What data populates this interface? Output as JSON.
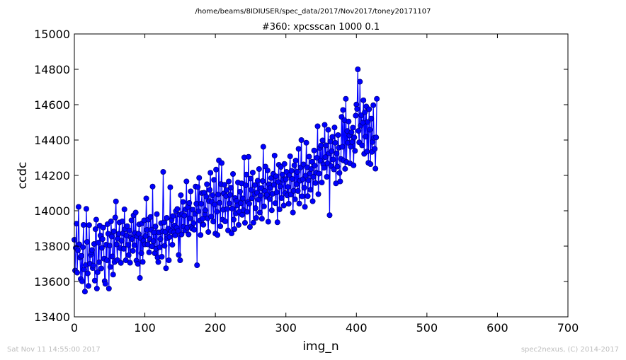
{
  "chart_data": {
    "type": "line",
    "suptitle": "/home/beams/8IDIUSER/spec_data/2017/Nov2017/toney20171107",
    "title": "#360: xpcsscan 1000 0.1",
    "xlabel": "img_n",
    "ylabel": "ccdc",
    "xlim": [
      0,
      700
    ],
    "ylim": [
      13400,
      15000
    ],
    "xticks": [
      "0",
      "100",
      "200",
      "300",
      "400",
      "500",
      "600",
      "700"
    ],
    "yticks": [
      "13400",
      "13600",
      "13800",
      "14000",
      "14200",
      "14400",
      "14600",
      "14800",
      "15000"
    ],
    "grid": false,
    "marker": "circle",
    "color": "#0000ff",
    "marker_edge_color": "#000080",
    "series": [
      {
        "name": "",
        "x_start": 0,
        "x_step": 1,
        "y": [
          13836,
          13662,
          13790,
          13927,
          13650,
          13776,
          14022,
          13810,
          13735,
          13614,
          13745,
          13601,
          13794,
          13920,
          13668,
          13543,
          13693,
          14011,
          13824,
          13646,
          13575,
          13919,
          13701,
          13750,
          13766,
          13778,
          13676,
          13690,
          13812,
          13605,
          13896,
          13950,
          13560,
          13652,
          13820,
          13709,
          13916,
          13860,
          13674,
          13790,
          13840,
          13905,
          13729,
          13602,
          13587,
          13808,
          13720,
          13924,
          13870,
          13560,
          13803,
          13682,
          13940,
          13854,
          13742,
          13639,
          13883,
          13710,
          13962,
          14053,
          13810,
          13721,
          13842,
          13870,
          13934,
          13789,
          13705,
          13830,
          13940,
          13872,
          13785,
          14008,
          13896,
          13720,
          13860,
          13913,
          13807,
          13749,
          13889,
          13706,
          13850,
          13946,
          13840,
          13773,
          13974,
          13805,
          13874,
          13990,
          13718,
          13855,
          13700,
          13870,
          13923,
          13620,
          13845,
          13760,
          13929,
          13711,
          13830,
          13946,
          13810,
          13857,
          14070,
          13892,
          13810,
          13950,
          13765,
          13840,
          13965,
          13893,
          13799,
          14137,
          13828,
          13878,
          13760,
          13911,
          13785,
          13981,
          13736,
          13710,
          13878,
          13794,
          13840,
          13930,
          13740,
          13883,
          14220,
          13934,
          13802,
          13880,
          13675,
          13960,
          13845,
          13899,
          13720,
          13852,
          14133,
          13884,
          13948,
          13808,
          13970,
          13878,
          13916,
          13861,
          13998,
          13905,
          14010,
          13885,
          13750,
          13978,
          13720,
          14088,
          13866,
          13982,
          14050,
          13910,
          13973,
          13888,
          14008,
          14166,
          13905,
          14021,
          13866,
          14044,
          13957,
          14110,
          13912,
          13899,
          14006,
          13930,
          13893,
          13982,
          14137,
          14040,
          13692,
          14134,
          13997,
          14186,
          13945,
          13863,
          14040,
          14100,
          13955,
          13921,
          14102,
          13980,
          14003,
          14080,
          14150,
          13957,
          13880,
          14055,
          14118,
          14215,
          13967,
          14050,
          14088,
          13939,
          14175,
          14035,
          13871,
          14233,
          13995,
          13863,
          14092,
          14285,
          14045,
          13912,
          14151,
          14270,
          13950,
          14006,
          14098,
          14147,
          13940,
          14083,
          14117,
          14010,
          13889,
          14166,
          14042,
          14090,
          14130,
          13872,
          14012,
          14208,
          13950,
          13896,
          14072,
          13985,
          14056,
          14030,
          14160,
          13920,
          13995,
          14108,
          14043,
          14155,
          13977,
          14070,
          14003,
          14302,
          13932,
          14144,
          14205,
          13994,
          14050,
          14305,
          14040,
          13908,
          14182,
          14118,
          14071,
          14216,
          13933,
          14094,
          14145,
          14015,
          13960,
          14102,
          14170,
          14063,
          14236,
          13990,
          14086,
          14128,
          13955,
          14168,
          14362,
          14025,
          14112,
          14250,
          14079,
          14090,
          14228,
          13938,
          14150,
          14066,
          14130,
          14185,
          14003,
          14096,
          14209,
          14147,
          14312,
          14043,
          14195,
          14104,
          13935,
          14163,
          14260,
          14008,
          14138,
          14248,
          14072,
          14205,
          14175,
          14030,
          14265,
          14100,
          14178,
          14220,
          14087,
          14135,
          14040,
          14201,
          14308,
          14092,
          14226,
          14180,
          13990,
          14113,
          14257,
          14065,
          14284,
          14150,
          14220,
          14112,
          14350,
          14041,
          14170,
          14245,
          14400,
          14082,
          14178,
          14262,
          14130,
          14022,
          14198,
          14385,
          14246,
          14083,
          14172,
          14306,
          14210,
          14119,
          14236,
          14277,
          14054,
          14192,
          14341,
          14255,
          14157,
          14216,
          14300,
          14478,
          14094,
          14210,
          14355,
          14282,
          14370,
          14160,
          14398,
          14262,
          14243,
          14486,
          14303,
          14370,
          14192,
          14268,
          14458,
          14324,
          13975,
          14392,
          14253,
          14337,
          14418,
          14290,
          14234,
          14471,
          14385,
          14155,
          14325,
          14250,
          14428,
          14357,
          14214,
          14166,
          14293,
          14531,
          14362,
          14570,
          14284,
          14512,
          14237,
          14633,
          14276,
          14451,
          14385,
          14505,
          14426,
          14268,
          14362,
          14444,
          14389,
          14470,
          14257,
          14415,
          14339,
          14538,
          14601,
          14576,
          14800,
          14452,
          14387,
          14730,
          14481,
          14540,
          14370,
          14498,
          14625,
          14322,
          14558,
          14419,
          14590,
          14335,
          14502,
          14271,
          14574,
          14458,
          14264,
          14521,
          14333,
          14389,
          14597,
          14413,
          14350,
          14238,
          14415,
          14633
        ]
      }
    ]
  },
  "footer": {
    "timestamp": "Sat Nov 11 14:55:00 2017",
    "credit": "spec2nexus, (C) 2014-2017"
  }
}
